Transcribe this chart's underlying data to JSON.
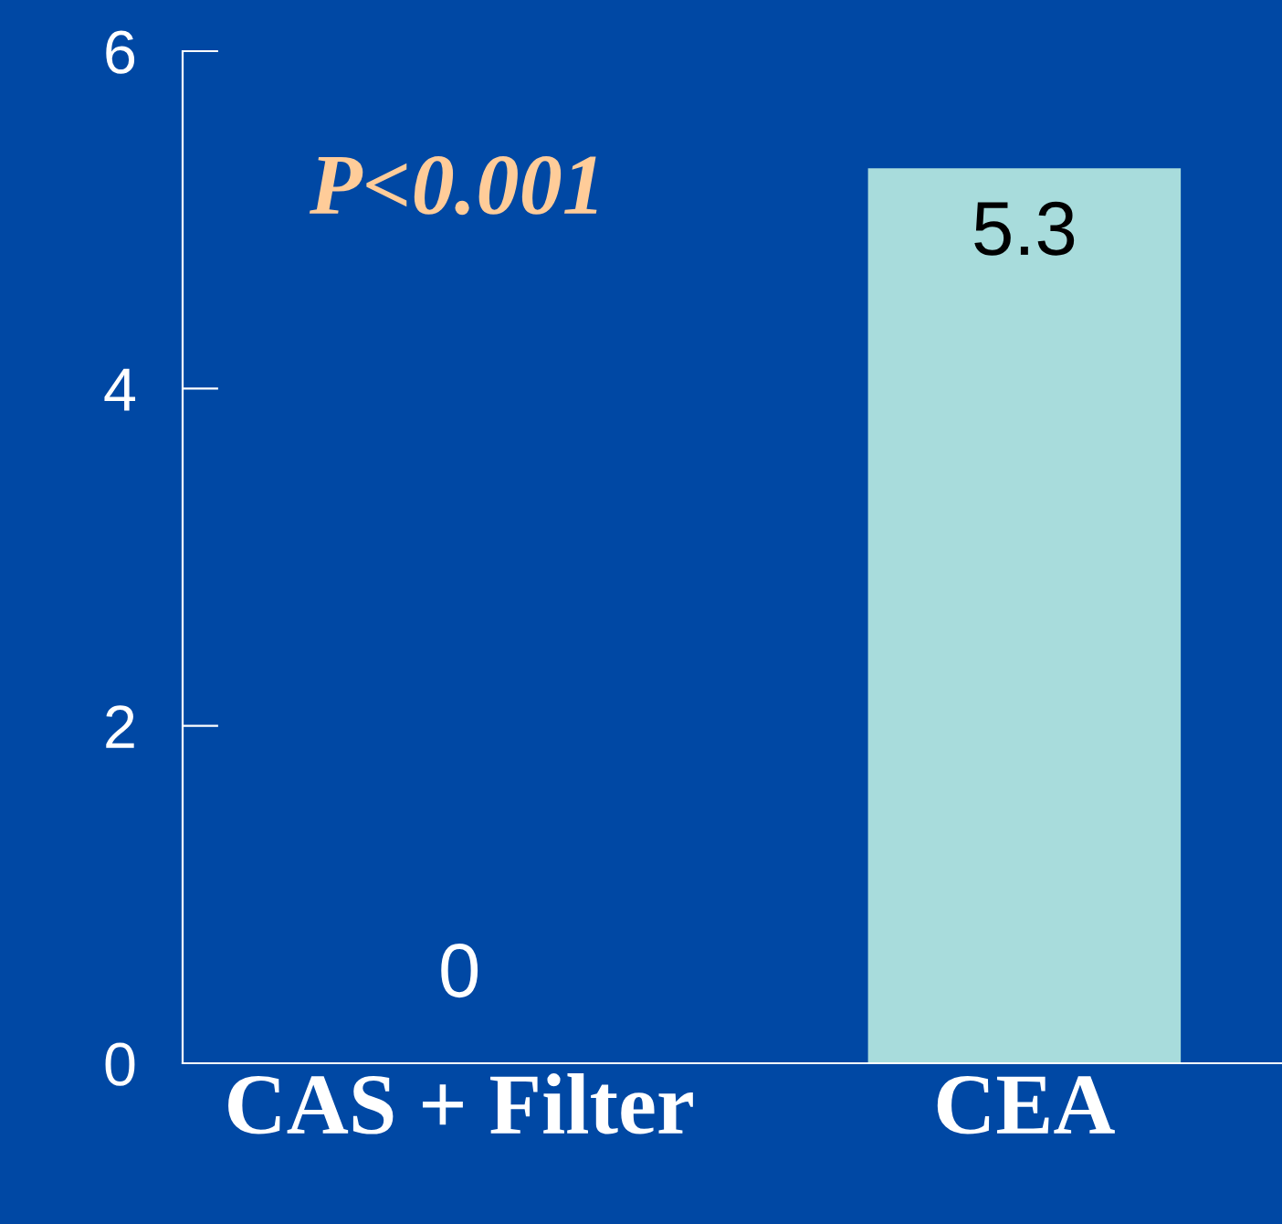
{
  "chart_data": {
    "type": "bar",
    "categories": [
      "CAS + Filter",
      "CEA"
    ],
    "values": [
      0,
      5.3
    ],
    "colors": [
      "#a8dcdc",
      "#a8dcdc"
    ],
    "ylim": [
      0,
      6
    ],
    "yticks": [
      0,
      2,
      4,
      6
    ],
    "grid": false,
    "data_labels": true,
    "annotations": [
      "P<0.001"
    ]
  }
}
